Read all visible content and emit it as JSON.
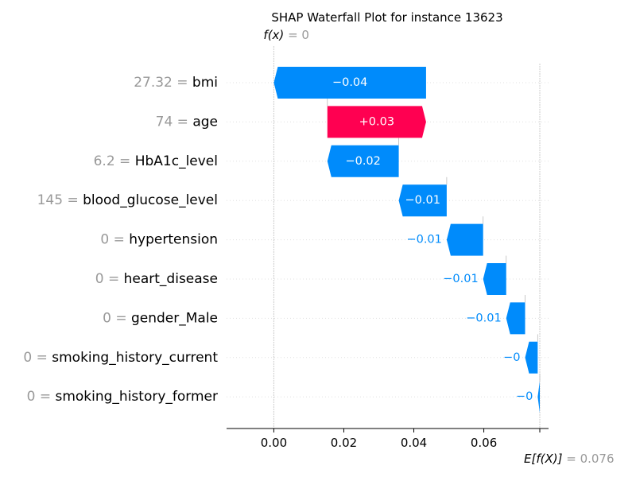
{
  "chart_data": {
    "type": "waterfall",
    "title": "SHAP Waterfall Plot for instance 13623",
    "fx_label": "f(x)",
    "fx_value": "0",
    "base_label": "E[f(X)]",
    "base_value_text": "0.076",
    "fx": 0,
    "base_value": 0.076,
    "xlim": [
      -0.0135,
      0.0785
    ],
    "x_ticks": [
      0.0,
      0.02,
      0.04,
      0.06
    ],
    "x_tick_labels": [
      "0.00",
      "0.02",
      "0.04",
      "0.06"
    ],
    "features": [
      {
        "value": "27.32",
        "name": "bmi",
        "start": 0.0435,
        "end": 0.0,
        "label": "−0.04"
      },
      {
        "value": "74",
        "name": "age",
        "start": 0.0153,
        "end": 0.0435,
        "label": "+0.03"
      },
      {
        "value": "6.2",
        "name": "HbA1c_level",
        "start": 0.0357,
        "end": 0.0153,
        "label": "−0.02"
      },
      {
        "value": "145",
        "name": "blood_glucose_level",
        "start": 0.0494,
        "end": 0.0357,
        "label": "−0.01"
      },
      {
        "value": "0",
        "name": "hypertension",
        "start": 0.0598,
        "end": 0.0494,
        "label": "−0.01"
      },
      {
        "value": "0",
        "name": "heart_disease",
        "start": 0.0664,
        "end": 0.0598,
        "label": "−0.01"
      },
      {
        "value": "0",
        "name": "gender_Male",
        "start": 0.0718,
        "end": 0.0664,
        "label": "−0.01"
      },
      {
        "value": "0",
        "name": "smoking_history_current",
        "start": 0.0754,
        "end": 0.0718,
        "label": "−0"
      },
      {
        "value": "0",
        "name": "smoking_history_former",
        "start": 0.076,
        "end": 0.0754,
        "label": "−0"
      }
    ]
  },
  "colors": {
    "positive": "#ff0051",
    "negative": "#008bfb",
    "grey_text": "#999999",
    "text": "#000000",
    "white": "#ffffff"
  }
}
